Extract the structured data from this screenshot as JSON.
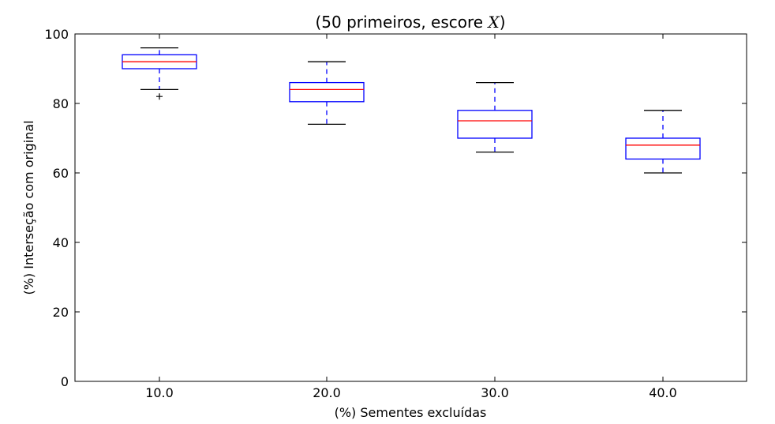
{
  "chart_data": {
    "type": "boxplot",
    "title": {
      "prefix": "(50 primeiros, escore ",
      "variable": "X",
      "suffix": ")"
    },
    "xlabel": "(%) Sementes excluídas",
    "ylabel": "(%) Interseção com original",
    "ylim": [
      0,
      100
    ],
    "yticks": [
      0,
      20,
      40,
      60,
      80,
      100
    ],
    "categories": [
      "10.0",
      "20.0",
      "30.0",
      "40.0"
    ],
    "boxes": [
      {
        "whisker_low": 84,
        "q1": 90,
        "median": 92,
        "q3": 94,
        "whisker_high": 96,
        "outliers": [
          82
        ]
      },
      {
        "whisker_low": 74,
        "q1": 80.5,
        "median": 84,
        "q3": 86,
        "whisker_high": 92,
        "outliers": []
      },
      {
        "whisker_low": 66,
        "q1": 70,
        "median": 75,
        "q3": 78,
        "whisker_high": 86,
        "outliers": []
      },
      {
        "whisker_low": 60,
        "q1": 64,
        "median": 68,
        "q3": 70,
        "whisker_high": 78,
        "outliers": []
      }
    ],
    "colors": {
      "box": "#0000ff",
      "median": "#ff0000",
      "whisker_cap": "#000000",
      "outlier": "#000000"
    },
    "grid": false
  }
}
